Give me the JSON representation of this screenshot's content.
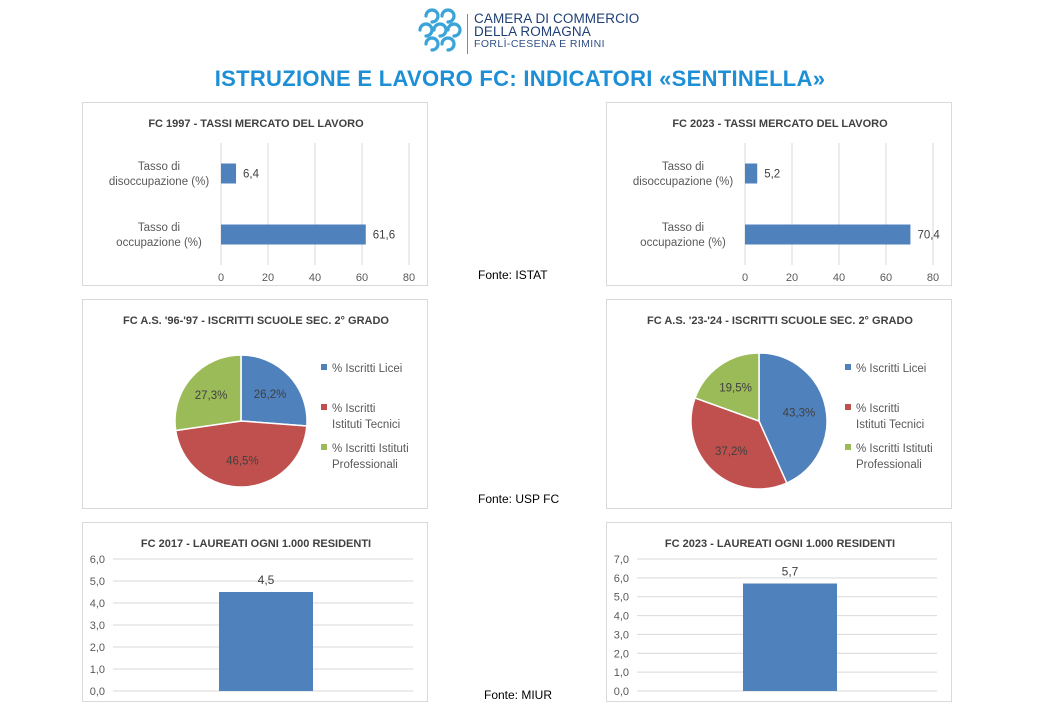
{
  "logo": {
    "line1": "CAMERA DI COMMERCIO",
    "line2": "DELLA ROMAGNA",
    "line3": "FORLÌ-CESENA E RIMINI",
    "colors": {
      "dark": "#1f3f77",
      "accent": "#3aa3d8"
    }
  },
  "page_title": "ISTRUZIONE E LAVORO FC: INDICATORI «SENTINELLA»",
  "sources": {
    "istat": "Fonte: ISTAT",
    "usp": "Fonte: USP FC",
    "miur": "Fonte: MIUR"
  },
  "chart_data": [
    {
      "type": "bar",
      "orientation": "horizontal",
      "title": "FC 1997 - TASSI MERCATO DEL LAVORO",
      "categories": [
        "Tasso di disoccupazione (%)",
        "Tasso di occupazione (%)"
      ],
      "values": [
        6.4,
        61.6
      ],
      "value_labels": [
        "6,4",
        "61,6"
      ],
      "xlim": [
        0,
        80
      ],
      "ticks": [
        0,
        20,
        40,
        60,
        80
      ],
      "tick_labels": [
        "0",
        "20",
        "40",
        "60",
        "80"
      ],
      "grid": true,
      "color": "#4f81bd"
    },
    {
      "type": "bar",
      "orientation": "horizontal",
      "title": "FC 2023 - TASSI MERCATO DEL LAVORO",
      "categories": [
        "Tasso di disoccupazione (%)",
        "Tasso di occupazione (%)"
      ],
      "values": [
        5.2,
        70.4
      ],
      "value_labels": [
        "5,2",
        "70,4"
      ],
      "xlim": [
        0,
        80
      ],
      "ticks": [
        0,
        20,
        40,
        60,
        80
      ],
      "tick_labels": [
        "0",
        "20",
        "40",
        "60",
        "80"
      ],
      "grid": true,
      "color": "#4f81bd"
    },
    {
      "type": "pie",
      "title": "FC A.S. '96-'97 - ISCRITTI SCUOLE SEC. 2° GRADO",
      "categories": [
        "% Iscritti Licei",
        "% Iscritti Istituti Tecnici",
        "% Iscritti Istituti Professionali"
      ],
      "values": [
        26.2,
        46.5,
        27.3
      ],
      "value_labels": [
        "26,2%",
        "46,5%",
        "27,3%"
      ],
      "colors": [
        "#4f81bd",
        "#c0504d",
        "#9bbb59"
      ],
      "legend": "right"
    },
    {
      "type": "pie",
      "title": "FC A.S. '23-'24 - ISCRITTI SCUOLE SEC. 2° GRADO",
      "categories": [
        "% Iscritti Licei",
        "% Iscritti Istituti Tecnici",
        "% Iscritti Istituti Professionali"
      ],
      "values": [
        43.3,
        37.2,
        19.5
      ],
      "value_labels": [
        "43,3%",
        "37,2%",
        "19,5%"
      ],
      "colors": [
        "#4f81bd",
        "#c0504d",
        "#9bbb59"
      ],
      "legend": "right"
    },
    {
      "type": "bar",
      "orientation": "vertical",
      "title": "FC 2017 - LAUREATI OGNI 1.000 RESIDENTI",
      "values": [
        4.5
      ],
      "value_labels": [
        "4,5"
      ],
      "ylim": [
        0,
        6
      ],
      "ticks": [
        0,
        1,
        2,
        3,
        4,
        5,
        6
      ],
      "tick_labels": [
        "0,0",
        "1,0",
        "2,0",
        "3,0",
        "4,0",
        "5,0",
        "6,0"
      ],
      "grid": true,
      "color": "#4f81bd"
    },
    {
      "type": "bar",
      "orientation": "vertical",
      "title": "FC 2023 - LAUREATI OGNI 1.000 RESIDENTI",
      "values": [
        5.7
      ],
      "value_labels": [
        "5,7"
      ],
      "ylim": [
        0,
        7
      ],
      "ticks": [
        0,
        1,
        2,
        3,
        4,
        5,
        6,
        7
      ],
      "tick_labels": [
        "0,0",
        "1,0",
        "2,0",
        "3,0",
        "4,0",
        "5,0",
        "6,0",
        "7,0"
      ],
      "grid": true,
      "color": "#4f81bd"
    }
  ]
}
